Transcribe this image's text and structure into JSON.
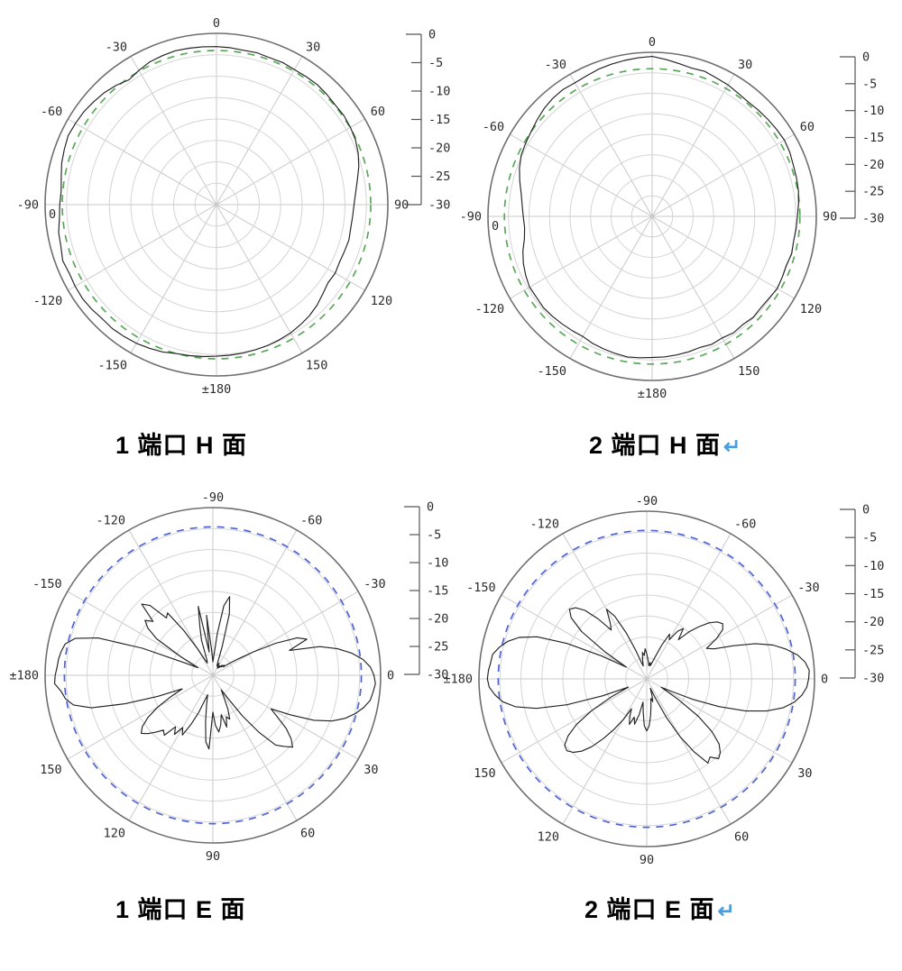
{
  "page": {
    "background": "#ffffff"
  },
  "colors": {
    "grid_ring": "#d4d4d4",
    "grid_spoke": "#c9c9c9",
    "outer_circle": "#6f6f6f",
    "trace": "#222222",
    "reference_green": "#5ba85b",
    "reference_blue": "#4f63d2",
    "tick_text": "#2b2b2b",
    "scale_line": "#555555",
    "caption_text": "#000000",
    "return_mark_blue": "#4a9fe0"
  },
  "chart_data": [
    {
      "id": "port1-h",
      "type": "polar-line",
      "title": "1 端口 H 面",
      "return_mark": "",
      "plane": "H",
      "zero_angle_position": "top",
      "angle_unit": "deg",
      "angle_tick_labels": [
        "0",
        "30",
        "60",
        "90",
        "120",
        "150",
        "±180",
        "-150",
        "-120",
        "-90",
        "-60",
        "-30"
      ],
      "radial_axis": {
        "unit": "dB",
        "scale_ticks": [
          0,
          -5,
          -10,
          -15,
          -20,
          -25,
          -30
        ],
        "outer_db": 0,
        "center_db": -40,
        "ring_step_db": 5
      },
      "radial_zero_label": "0",
      "series": [
        {
          "name": "measured",
          "color_key": "trace",
          "angle_start_deg": -180,
          "angle_step_deg": 5,
          "db": [
            -4.6,
            -4.4,
            -4.2,
            -4.0,
            -3.4,
            -3.0,
            -2.6,
            -2.4,
            -2.2,
            -2.3,
            -2.0,
            -1.8,
            -1.9,
            -2.1,
            -1.8,
            -2.4,
            -2.6,
            -3.2,
            -3.4,
            -3.6,
            -3.2,
            -2.6,
            -2.2,
            -1.8,
            -2.0,
            -2.2,
            -2.6,
            -3.0,
            -3.6,
            -4.4,
            -3.8,
            -3.2,
            -3.0,
            -2.8,
            -2.9,
            -3.0,
            -3.1,
            -3.2,
            -3.4,
            -3.3,
            -3.5,
            -3.4,
            -3.6,
            -3.5,
            -3.4,
            -3.6,
            -3.8,
            -3.7,
            -3.9,
            -4.2,
            -4.8,
            -5.6,
            -6.6,
            -7.4,
            -7.9,
            -8.1,
            -8.2,
            -8.0,
            -8.2,
            -8.3,
            -8.0,
            -8.2,
            -7.6,
            -6.8,
            -6.2,
            -5.8,
            -5.4,
            -5.2,
            -5.0,
            -4.9,
            -4.8,
            -4.7,
            -4.6
          ]
        },
        {
          "name": "reference",
          "style": "dashed-circle",
          "color_key": "reference_green",
          "db": -4.0
        }
      ]
    },
    {
      "id": "port2-h",
      "type": "polar-line",
      "title": "2 端口 H 面",
      "return_mark": "↵",
      "plane": "H",
      "zero_angle_position": "top",
      "angle_unit": "deg",
      "angle_tick_labels": [
        "0",
        "30",
        "60",
        "90",
        "120",
        "150",
        "±180",
        "-150",
        "-120",
        "-90",
        "-60",
        "-30"
      ],
      "radial_axis": {
        "unit": "dB",
        "scale_ticks": [
          0,
          -5,
          -10,
          -15,
          -20,
          -25,
          -30
        ],
        "outer_db": 0,
        "center_db": -40,
        "ring_step_db": 5
      },
      "radial_zero_label": "0",
      "series": [
        {
          "name": "measured",
          "color_key": "trace",
          "angle_start_deg": -180,
          "angle_step_deg": 5,
          "db": [
            -5.6,
            -5.4,
            -5.2,
            -5.4,
            -5.6,
            -5.8,
            -6.2,
            -6.0,
            -5.8,
            -5.6,
            -5.4,
            -5.6,
            -5.5,
            -6.0,
            -6.6,
            -7.4,
            -8.4,
            -8.8,
            -8.6,
            -8.2,
            -7.6,
            -6.6,
            -5.6,
            -4.8,
            -4.4,
            -4.0,
            -3.4,
            -2.8,
            -2.4,
            -2.2,
            -2.4,
            -2.2,
            -1.8,
            -1.6,
            -1.4,
            -1.2,
            -1.0,
            -1.6,
            -2.2,
            -2.6,
            -2.4,
            -2.8,
            -3.0,
            -3.4,
            -3.6,
            -3.4,
            -3.2,
            -3.0,
            -2.8,
            -3.0,
            -3.4,
            -3.6,
            -3.8,
            -4.2,
            -4.6,
            -4.8,
            -5.0,
            -4.8,
            -5.2,
            -5.0,
            -4.8,
            -5.2,
            -5.4,
            -5.2,
            -5.6,
            -5.4,
            -5.8,
            -5.6,
            -6.0,
            -5.8,
            -5.7,
            -5.6,
            -5.6
          ]
        },
        {
          "name": "reference",
          "style": "dashed-circle",
          "color_key": "reference_green",
          "db": -4.0
        }
      ]
    },
    {
      "id": "port1-e",
      "type": "polar-line",
      "title": "1 端口 E 面",
      "return_mark": "",
      "plane": "E",
      "zero_angle_position": "right",
      "angle_unit": "deg",
      "angle_tick_labels": [
        "0",
        "30",
        "60",
        "90",
        "120",
        "150",
        "±180",
        "-150",
        "-120",
        "-90",
        "-60",
        "-30"
      ],
      "radial_axis": {
        "unit": "dB",
        "scale_ticks": [
          0,
          -5,
          -10,
          -15,
          -20,
          -25,
          -30
        ],
        "outer_db": 0,
        "center_db": -40,
        "ring_step_db": 5
      },
      "radial_zero_label": "",
      "series": [
        {
          "name": "measured",
          "color_key": "trace",
          "angle_start_deg": -180,
          "angle_step_deg": 3,
          "db": [
            -2.4,
            -2.8,
            -3.0,
            -3.4,
            -4.0,
            -6.0,
            -11.2,
            -22.0,
            -32.8,
            -36.0,
            -31.2,
            -24.0,
            -20.8,
            -19.2,
            -20.8,
            -16.0,
            -17.6,
            -22.4,
            -21.6,
            -27.2,
            -32.8,
            -36.0,
            -36.8,
            -36.0,
            -31.2,
            -28.0,
            -23.2,
            -34.4,
            -25.6,
            -33.6,
            -36.8,
            -35.2,
            -30.0,
            -23.2,
            -20.8,
            -24.8,
            -32.8,
            -36.8,
            -37.6,
            -36.8,
            -37.6,
            -38.0,
            -37.2,
            -37.6,
            -36.8,
            -37.2,
            -36.4,
            -36.8,
            -35.2,
            -32.8,
            -28.8,
            -23.2,
            -18.0,
            -16.0,
            -20.8,
            -13.6,
            -9.6,
            -6.4,
            -4.0,
            -2.4,
            -1.6,
            -1.2,
            -1.6,
            -2.0,
            -3.2,
            -4.8,
            -6.8,
            -9.6,
            -13.6,
            -19.2,
            -24.0,
            -21.6,
            -18.4,
            -16.0,
            -14.4,
            -16.0,
            -17.6,
            -22.4,
            -28.0,
            -33.6,
            -36.0,
            -34.4,
            -31.2,
            -28.8,
            -29.6,
            -27.2,
            -30.4,
            -28.0,
            -26.4,
            -28.0,
            -31.2,
            -22.4,
            -24.0,
            -28.8,
            -32.8,
            -35.2,
            -33.6,
            -30.4,
            -27.2,
            -24.0,
            -25.6,
            -23.2,
            -24.8,
            -21.6,
            -22.4,
            -20.8,
            -19.2,
            -18.0,
            -19.2,
            -21.6,
            -24.8,
            -28.8,
            -32.0,
            -26.0,
            -18.0,
            -10.0,
            -6.0,
            -4.4,
            -3.6,
            -2.2,
            -2.4
          ]
        },
        {
          "name": "reference",
          "style": "dashed-circle",
          "color_key": "reference_blue",
          "db": -4.6
        }
      ]
    },
    {
      "id": "port2-e",
      "type": "polar-line",
      "title": "2 端口 E 面",
      "return_mark": "↵",
      "plane": "E",
      "zero_angle_position": "right",
      "angle_unit": "deg",
      "angle_tick_labels": [
        "0",
        "30",
        "60",
        "90",
        "120",
        "150",
        "±180",
        "-150",
        "-120",
        "-90",
        "-60",
        "-30"
      ],
      "radial_axis": {
        "unit": "dB",
        "scale_ticks": [
          0,
          -5,
          -10,
          -15,
          -20,
          -25,
          -30
        ],
        "outer_db": 0,
        "center_db": -40,
        "ring_step_db": 5
      },
      "radial_zero_label": "",
      "series": [
        {
          "name": "measured",
          "color_key": "trace",
          "angle_start_deg": -180,
          "angle_step_deg": 3,
          "db": [
            -2.0,
            -2.2,
            -2.6,
            -2.8,
            -4.0,
            -5.6,
            -8.0,
            -12.0,
            -19.2,
            -28.0,
            -34.4,
            -28.0,
            -20.8,
            -16.8,
            -15.2,
            -16.0,
            -18.0,
            -21.6,
            -25.6,
            -24.0,
            -20.8,
            -23.2,
            -28.0,
            -32.8,
            -36.0,
            -36.8,
            -35.2,
            -33.6,
            -34.4,
            -32.8,
            -34.0,
            -35.2,
            -36.0,
            -36.8,
            -36.0,
            -36.8,
            -36.0,
            -34.4,
            -31.2,
            -28.0,
            -29.2,
            -26.4,
            -25.2,
            -28.0,
            -24.8,
            -22.4,
            -20.0,
            -18.4,
            -17.6,
            -18.4,
            -20.8,
            -24.0,
            -22.4,
            -18.0,
            -12.8,
            -8.8,
            -6.0,
            -3.6,
            -2.0,
            -1.2,
            -1.4,
            -1.8,
            -2.8,
            -4.4,
            -6.8,
            -10.4,
            -15.2,
            -21.6,
            -28.0,
            -33.6,
            -36.0,
            -31.2,
            -24.8,
            -20.0,
            -16.8,
            -15.2,
            -14.4,
            -16.0,
            -15.2,
            -19.2,
            -24.0,
            -29.6,
            -35.2,
            -37.6,
            -36.0,
            -34.4,
            -35.2,
            -33.6,
            -31.2,
            -28.8,
            -27.6,
            -28.8,
            -32.0,
            -34.4,
            -31.2,
            -28.8,
            -30.4,
            -28.4,
            -30.0,
            -32.0,
            -28.8,
            -25.6,
            -22.4,
            -19.2,
            -16.8,
            -15.2,
            -14.4,
            -14.8,
            -16.8,
            -20.0,
            -24.8,
            -30.4,
            -35.2,
            -28.8,
            -20.0,
            -12.8,
            -8.0,
            -5.2,
            -3.6,
            -2.4,
            -2.0
          ]
        },
        {
          "name": "reference",
          "style": "dashed-circle",
          "color_key": "reference_blue",
          "db": -4.6
        }
      ]
    }
  ]
}
